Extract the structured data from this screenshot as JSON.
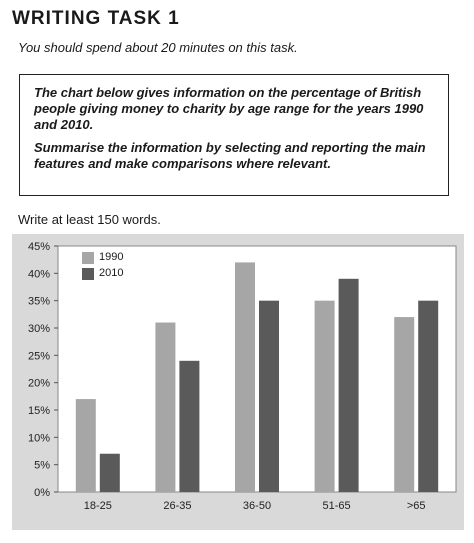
{
  "header": {
    "title": "WRITING TASK 1",
    "instruction": "You should spend about 20 minutes on this task."
  },
  "task": {
    "description": "The chart below gives information on the percentage of British people giving money to charity by age range for the years 1990 and 2010.",
    "prompt": "Summarise the information by selecting and reporting the main features and make comparisons where relevant."
  },
  "word_count_text": "Write at least 150 words.",
  "colors": {
    "series_1990": "#a6a6a6",
    "series_2010": "#5a5a5a",
    "panel": "#d9d9d9",
    "plot": "#ffffff"
  },
  "chart_data": {
    "type": "bar",
    "categories": [
      "18-25",
      "26-35",
      "36-50",
      "51-65",
      ">65"
    ],
    "series": [
      {
        "name": "1990",
        "values": [
          17,
          31,
          42,
          35,
          32
        ]
      },
      {
        "name": "2010",
        "values": [
          7,
          24,
          35,
          39,
          35
        ]
      }
    ],
    "ylim": [
      0,
      45
    ],
    "yticks": [
      "0%",
      "5%",
      "10%",
      "15%",
      "20%",
      "25%",
      "30%",
      "35%",
      "40%",
      "45%"
    ],
    "ytick_values": [
      0,
      5,
      10,
      15,
      20,
      25,
      30,
      35,
      40,
      45
    ],
    "legend_position": "top-left",
    "grid": false
  }
}
